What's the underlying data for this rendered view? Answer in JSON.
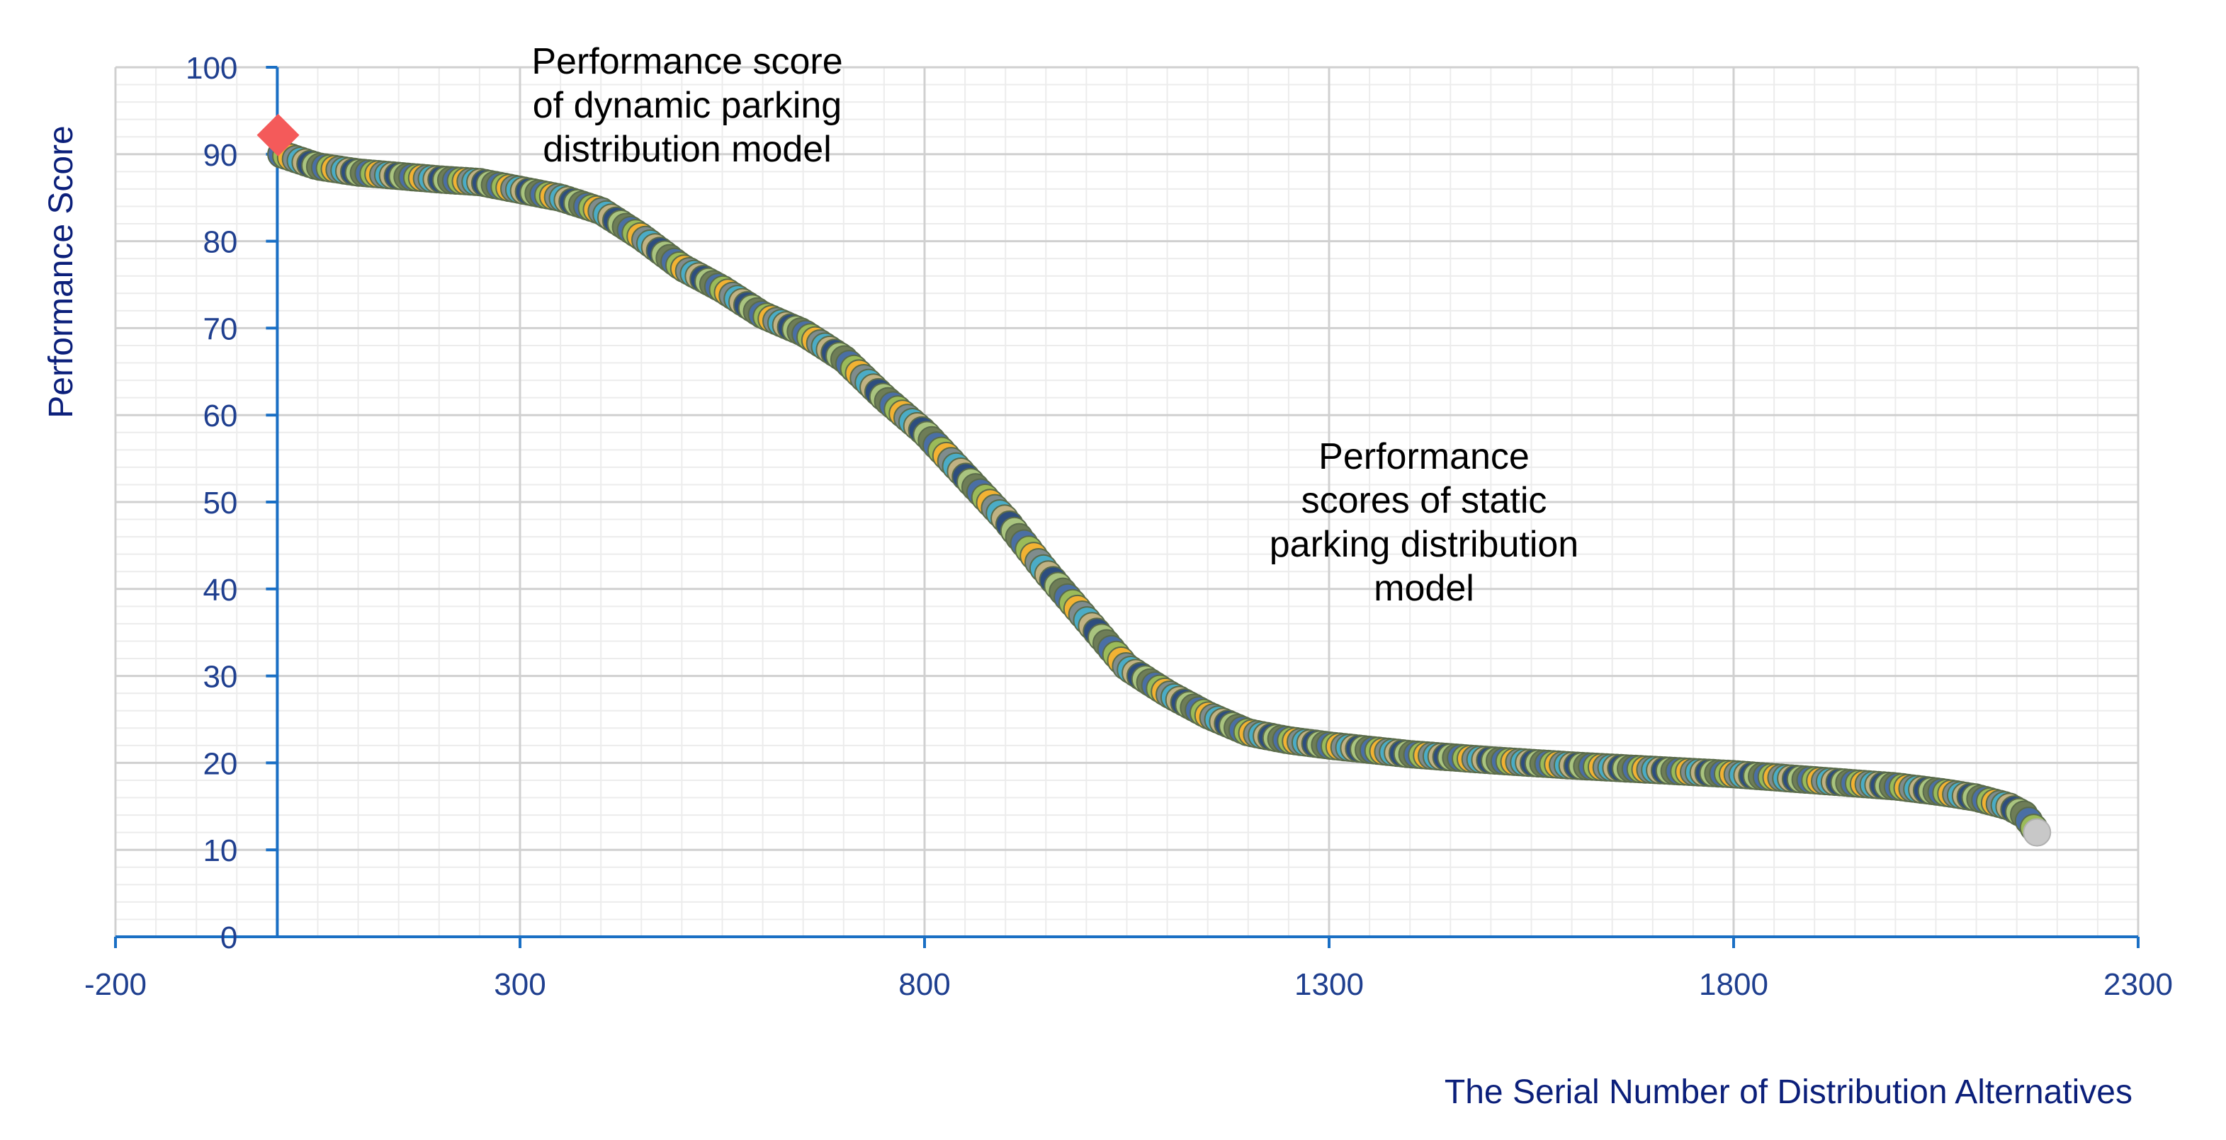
{
  "chart_data": {
    "type": "scatter",
    "title": "",
    "xlabel": "The Serial Number of Distribution Alternatives",
    "ylabel": "Performance Score",
    "xlim": [
      -200,
      2300
    ],
    "ylim": [
      0,
      100
    ],
    "x_ticks": [
      "-200",
      "300",
      "800",
      "1300",
      "1800",
      "2300"
    ],
    "y_ticks": [
      "0",
      "10",
      "20",
      "30",
      "40",
      "50",
      "60",
      "70",
      "80",
      "90",
      "100"
    ],
    "grid": true,
    "series": [
      {
        "name": "Performance score of dynamic parking distribution model",
        "marker": "diamond",
        "color": "#f45a5a",
        "points": [
          [
            1,
            92.2
          ]
        ]
      },
      {
        "name": "Performance scores of static parking distribution model",
        "marker": "circle",
        "colors": [
          "#4a6fa5",
          "#9bbb59",
          "#f2b233",
          "#7f8c8d",
          "#4bacc6",
          "#c0b283",
          "#2e4e7e",
          "#a9c47f",
          "#6e7d57"
        ],
        "curve_keypoints": [
          [
            5,
            90.0
          ],
          [
            50,
            88.6
          ],
          [
            100,
            87.9
          ],
          [
            200,
            87.1
          ],
          [
            250,
            86.8
          ],
          [
            300,
            85.9
          ],
          [
            350,
            85.0
          ],
          [
            400,
            83.5
          ],
          [
            450,
            80.5
          ],
          [
            500,
            77.0
          ],
          [
            550,
            74.5
          ],
          [
            600,
            71.5
          ],
          [
            650,
            69.5
          ],
          [
            700,
            66.5
          ],
          [
            750,
            62.0
          ],
          [
            800,
            58.0
          ],
          [
            850,
            53.0
          ],
          [
            900,
            48.0
          ],
          [
            950,
            42.0
          ],
          [
            1000,
            36.5
          ],
          [
            1050,
            31.0
          ],
          [
            1100,
            28.0
          ],
          [
            1150,
            25.5
          ],
          [
            1200,
            23.5
          ],
          [
            1250,
            22.6
          ],
          [
            1300,
            22.0
          ],
          [
            1400,
            21.0
          ],
          [
            1500,
            20.3
          ],
          [
            1600,
            19.7
          ],
          [
            1700,
            19.2
          ],
          [
            1800,
            18.7
          ],
          [
            1900,
            18.0
          ],
          [
            2000,
            17.3
          ],
          [
            2060,
            16.6
          ],
          [
            2100,
            16.0
          ],
          [
            2140,
            15.0
          ],
          [
            2160,
            14.0
          ],
          [
            2175,
            12.0
          ]
        ],
        "last_point": [
          2175,
          12.0
        ],
        "last_point_color": "#c8c8c8"
      }
    ],
    "annotations": [
      {
        "target": "dynamic",
        "lines": [
          "Performance score",
          "of dynamic parking",
          "distribution model"
        ]
      },
      {
        "target": "static",
        "lines": [
          "Performance",
          "scores of static",
          "parking distribution",
          "model"
        ]
      }
    ]
  },
  "colors": {
    "axis": "#1a6fc4",
    "text": "#1f3f8f",
    "major_grid": "#d0d0d0",
    "minor_grid": "#ececec"
  }
}
